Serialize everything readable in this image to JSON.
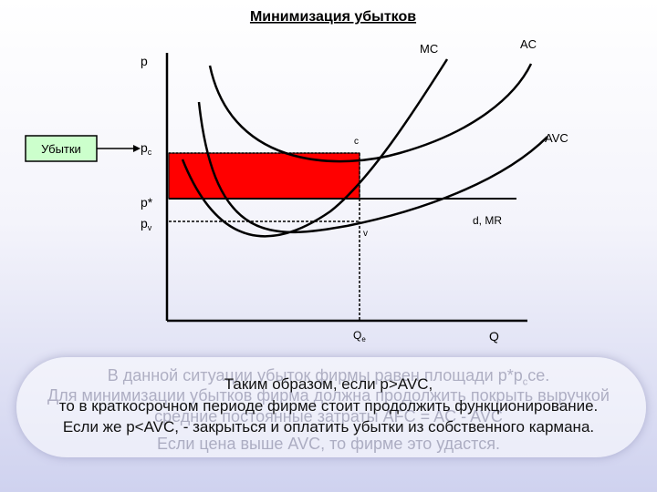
{
  "diagram": {
    "title": "Минимизация убытков",
    "labels": {
      "p_axis": "p",
      "q_axis": "Q",
      "pc": "p",
      "pc_sub": "c",
      "pstar": "p*",
      "pv": "p",
      "pv_sub": "v",
      "qe": "Q",
      "qe_sub": "e",
      "mc": "MC",
      "ac": "AC",
      "avc": "AVC",
      "point_c": "c",
      "point_v": "v",
      "d_mr": "d, MR"
    },
    "losses_label": "Убытки",
    "colors": {
      "losses_fill": "#ff0000",
      "losses_box": "#ccffcc",
      "lines": "#000000"
    }
  },
  "text_block": {
    "ghost_line1": "В данной ситуации убыток фирмы равен площади p*p",
    "ghost_line1_sub": "c",
    "ghost_line1_end": "ce.",
    "ghost_line2": "Для минимизации убытков фирма должна продолжить покрыть выручкой",
    "ghost_line3": "средние постоянные затраты AFC = AC - AVC",
    "ghost_line4": "Если цена выше AVC, то фирме это удастся.",
    "line1": "Таким образом, если p>AVC,",
    "line2": "то в краткосрочном периоде фирме стоит продолжить функционирование.",
    "line3": "Если же p<AVC, - закрыться и оплатить убытки из собственного кармана."
  }
}
